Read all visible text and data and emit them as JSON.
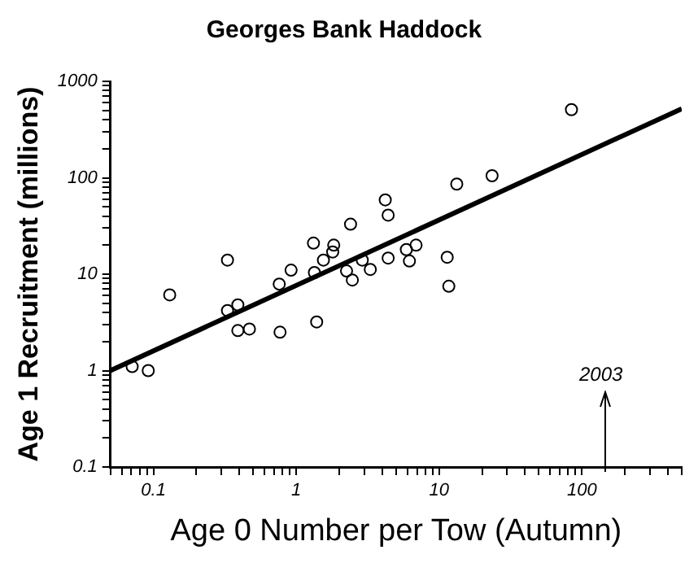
{
  "chart_data": {
    "type": "scatter",
    "title": "Georges Bank Haddock",
    "xlabel": "Age 0 Number per Tow (Autumn)",
    "ylabel": "Age 1 Recruitment (millions)",
    "log": "xy",
    "grid": false,
    "legend": false,
    "line_style": "solid",
    "xlim": [
      0.05,
      500
    ],
    "ylim": [
      0.1,
      1000
    ],
    "xticks": [
      {
        "value": 0.05,
        "label": null
      },
      {
        "value": 0.06,
        "label": null
      },
      {
        "value": 0.07,
        "label": null
      },
      {
        "value": 0.08,
        "label": null
      },
      {
        "value": 0.09,
        "label": null
      },
      0.1,
      {
        "value": 0.2,
        "label": null
      },
      {
        "value": 0.3,
        "label": null
      },
      {
        "value": 0.4,
        "label": null
      },
      {
        "value": 0.5,
        "label": null
      },
      {
        "value": 0.6,
        "label": null
      },
      {
        "value": 0.7,
        "label": null
      },
      {
        "value": 0.8,
        "label": null
      },
      {
        "value": 0.9,
        "label": null
      },
      1,
      {
        "value": 2,
        "label": null
      },
      {
        "value": 3,
        "label": null
      },
      {
        "value": 4,
        "label": null
      },
      {
        "value": 5,
        "label": null
      },
      {
        "value": 6,
        "label": null
      },
      {
        "value": 7,
        "label": null
      },
      {
        "value": 8,
        "label": null
      },
      {
        "value": 9,
        "label": null
      },
      10,
      {
        "value": 20,
        "label": null
      },
      {
        "value": 30,
        "label": null
      },
      {
        "value": 40,
        "label": null
      },
      {
        "value": 50,
        "label": null
      },
      {
        "value": 60,
        "label": null
      },
      {
        "value": 70,
        "label": null
      },
      {
        "value": 80,
        "label": null
      },
      {
        "value": 90,
        "label": null
      },
      100,
      {
        "value": 200,
        "label": null
      },
      {
        "value": 300,
        "label": null
      },
      {
        "value": 400,
        "label": null
      },
      {
        "value": 500,
        "label": null
      }
    ],
    "yticks": [
      0.1,
      {
        "value": 0.2,
        "label": null
      },
      {
        "value": 0.3,
        "label": null
      },
      {
        "value": 0.4,
        "label": null
      },
      {
        "value": 0.5,
        "label": null
      },
      {
        "value": 0.6,
        "label": null
      },
      {
        "value": 0.7,
        "label": null
      },
      {
        "value": 0.8,
        "label": null
      },
      {
        "value": 0.9,
        "label": null
      },
      1,
      {
        "value": 2,
        "label": null
      },
      {
        "value": 3,
        "label": null
      },
      {
        "value": 4,
        "label": null
      },
      {
        "value": 5,
        "label": null
      },
      {
        "value": 6,
        "label": null
      },
      {
        "value": 7,
        "label": null
      },
      {
        "value": 8,
        "label": null
      },
      {
        "value": 9,
        "label": null
      },
      10,
      {
        "value": 20,
        "label": null
      },
      {
        "value": 30,
        "label": null
      },
      {
        "value": 40,
        "label": null
      },
      {
        "value": 50,
        "label": null
      },
      {
        "value": 60,
        "label": null
      },
      {
        "value": 70,
        "label": null
      },
      {
        "value": 80,
        "label": null
      },
      {
        "value": 90,
        "label": null
      },
      100,
      {
        "value": 200,
        "label": null
      },
      {
        "value": 300,
        "label": null
      },
      {
        "value": 400,
        "label": null
      },
      {
        "value": 500,
        "label": null
      },
      {
        "value": 600,
        "label": null
      },
      {
        "value": 700,
        "label": null
      },
      {
        "value": 800,
        "label": null
      },
      {
        "value": 900,
        "label": null
      },
      1000
    ],
    "series": [
      {
        "type": "scatter",
        "marker": "circle",
        "color": "#000000",
        "x": [
          0.071,
          0.092,
          0.13,
          0.33,
          0.33,
          0.39,
          0.39,
          0.47,
          0.76,
          0.77,
          0.92,
          1.32,
          1.34,
          1.39,
          1.55,
          1.83,
          1.8,
          2.4,
          2.25,
          2.47,
          2.9,
          3.3,
          4.2,
          4.4,
          4.4,
          5.9,
          6.2,
          6.9,
          11.4,
          11.7,
          13.3,
          23.5,
          84.5
        ],
        "values": [
          1.1,
          1.0,
          6.1,
          14,
          4.2,
          4.8,
          2.6,
          2.7,
          7.9,
          2.5,
          11,
          21,
          10.4,
          3.2,
          14,
          20,
          17,
          33,
          10.8,
          8.7,
          14,
          11.2,
          59,
          41,
          14.7,
          18,
          13.7,
          20,
          15,
          7.5,
          86,
          105,
          509
        ]
      },
      {
        "type": "line",
        "color": "#000000",
        "x": [
          0.05,
          500
        ],
        "values": [
          1,
          520
        ]
      }
    ],
    "annotations": [
      "2003"
    ]
  }
}
